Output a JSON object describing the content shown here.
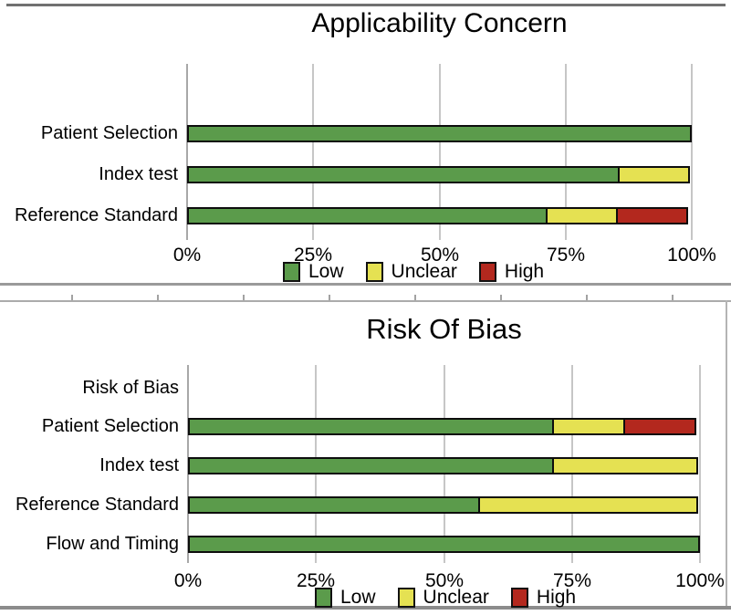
{
  "figure": {
    "background": "#ffffff",
    "status_colors": {
      "low": "#5b9b4b",
      "unclear": "#e5e152",
      "high": "#b3281e"
    }
  },
  "chart_data": [
    {
      "type": "bar",
      "orientation": "horizontal",
      "stacked": true,
      "title": "Applicability Concern",
      "categories": [
        "Patient Selection",
        "Index test",
        "Reference Standard"
      ],
      "series": [
        {
          "name": "Low",
          "color": "#5b9b4b",
          "values": [
            100,
            85.7,
            71.4
          ]
        },
        {
          "name": "Unclear",
          "color": "#e5e152",
          "values": [
            0,
            14.3,
            14.3
          ]
        },
        {
          "name": "High",
          "color": "#b3281e",
          "values": [
            0,
            0,
            14.3
          ]
        }
      ],
      "xlim": [
        0,
        100
      ],
      "x_ticks": [
        "0%",
        "25%",
        "50%",
        "75%",
        "100%"
      ],
      "grid": true,
      "legend": {
        "position": "bottom",
        "labels": [
          "Low",
          "Unclear",
          "High"
        ]
      }
    },
    {
      "type": "bar",
      "orientation": "horizontal",
      "stacked": true,
      "title": "Risk Of Bias",
      "categories": [
        "Risk of Bias",
        "Patient Selection",
        "Index test",
        "Reference Standard",
        "Flow and Timing"
      ],
      "series": [
        {
          "name": "Low",
          "color": "#5b9b4b",
          "values": [
            0,
            71.4,
            71.4,
            57.1,
            100
          ]
        },
        {
          "name": "Unclear",
          "color": "#e5e152",
          "values": [
            0,
            14.3,
            28.6,
            42.9,
            0
          ]
        },
        {
          "name": "High",
          "color": "#b3281e",
          "values": [
            0,
            14.3,
            0,
            0,
            0
          ]
        }
      ],
      "xlim": [
        0,
        100
      ],
      "x_ticks": [
        "0%",
        "25%",
        "50%",
        "75%",
        "100%"
      ],
      "grid": true,
      "legend": {
        "position": "bottom",
        "labels": [
          "Low",
          "Unclear",
          "High"
        ]
      }
    }
  ]
}
